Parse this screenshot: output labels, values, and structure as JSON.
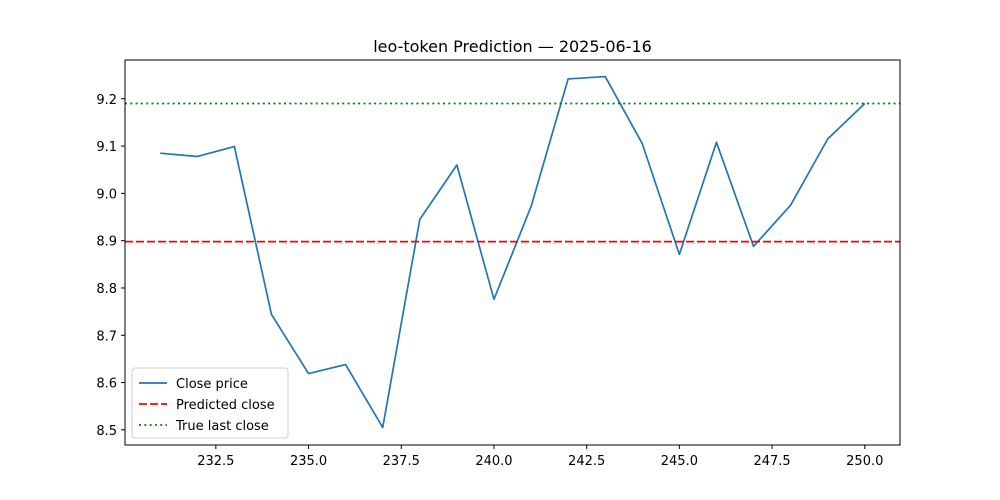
{
  "chart_data": {
    "type": "line",
    "title": "leo-token Prediction — 2025-06-16",
    "xlabel": "",
    "ylabel": "",
    "xlim": [
      230.05,
      250.95
    ],
    "ylim": [
      8.468,
      9.282
    ],
    "xticks": [
      232.5,
      235.0,
      237.5,
      240.0,
      242.5,
      245.0,
      247.5,
      250.0
    ],
    "xtick_labels": [
      "232.5",
      "235.0",
      "237.5",
      "240.0",
      "242.5",
      "245.0",
      "247.5",
      "250.0"
    ],
    "yticks": [
      8.5,
      8.6,
      8.7,
      8.8,
      8.9,
      9.0,
      9.1,
      9.2
    ],
    "ytick_labels": [
      "8.5",
      "8.6",
      "8.7",
      "8.8",
      "8.9",
      "9.0",
      "9.1",
      "9.2"
    ],
    "grid": false,
    "legend_position": "lower-left",
    "series": [
      {
        "name": "Close price",
        "kind": "line",
        "style": "solid",
        "color": "#1f77b4",
        "x": [
          231,
          232,
          233,
          234,
          235,
          236,
          237,
          238,
          239,
          240,
          241,
          242,
          243,
          244,
          245,
          246,
          247,
          248,
          249,
          250
        ],
        "y": [
          9.085,
          9.078,
          9.099,
          8.744,
          8.619,
          8.638,
          8.505,
          8.945,
          9.06,
          8.776,
          8.972,
          9.242,
          9.247,
          9.105,
          8.871,
          9.108,
          8.888,
          8.975,
          9.115,
          9.19
        ]
      },
      {
        "name": "Predicted close",
        "kind": "hline",
        "style": "dashed",
        "color": "#ff0000",
        "y": 8.898
      },
      {
        "name": "True last close",
        "kind": "hline",
        "style": "dotted",
        "color": "#008000",
        "y": 9.19
      }
    ]
  }
}
